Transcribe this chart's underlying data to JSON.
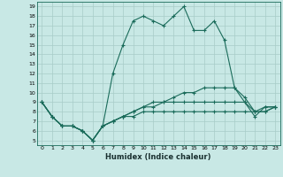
{
  "xlabel": "Humidex (Indice chaleur)",
  "bg_color": "#c8e8e5",
  "grid_color": "#a8ccc8",
  "line_color": "#1a6b5a",
  "xlim": [
    -0.5,
    23.5
  ],
  "ylim": [
    4.5,
    19.5
  ],
  "yticks": [
    5,
    6,
    7,
    8,
    9,
    10,
    11,
    12,
    13,
    14,
    15,
    16,
    17,
    18,
    19
  ],
  "xticks": [
    0,
    1,
    2,
    3,
    4,
    5,
    6,
    7,
    8,
    9,
    10,
    11,
    12,
    13,
    14,
    15,
    16,
    17,
    18,
    19,
    20,
    21,
    22,
    23
  ],
  "series": [
    [
      9.0,
      7.5,
      6.5,
      6.5,
      6.0,
      5.0,
      6.5,
      12.0,
      15.0,
      17.5,
      18.0,
      17.5,
      17.0,
      18.0,
      19.0,
      16.5,
      16.5,
      17.5,
      15.5,
      10.5,
      9.0,
      7.5,
      8.5,
      8.5
    ],
    [
      9.0,
      7.5,
      6.5,
      6.5,
      6.0,
      5.0,
      6.5,
      7.0,
      7.5,
      8.0,
      8.5,
      8.5,
      9.0,
      9.5,
      10.0,
      10.0,
      10.5,
      10.5,
      10.5,
      10.5,
      9.5,
      8.0,
      8.5,
      8.5
    ],
    [
      9.0,
      7.5,
      6.5,
      6.5,
      6.0,
      5.0,
      6.5,
      7.0,
      7.5,
      8.0,
      8.5,
      9.0,
      9.0,
      9.0,
      9.0,
      9.0,
      9.0,
      9.0,
      9.0,
      9.0,
      9.0,
      8.0,
      8.0,
      8.5
    ],
    [
      9.0,
      7.5,
      6.5,
      6.5,
      6.0,
      5.0,
      6.5,
      7.0,
      7.5,
      7.5,
      8.0,
      8.0,
      8.0,
      8.0,
      8.0,
      8.0,
      8.0,
      8.0,
      8.0,
      8.0,
      8.0,
      8.0,
      8.0,
      8.5
    ]
  ]
}
